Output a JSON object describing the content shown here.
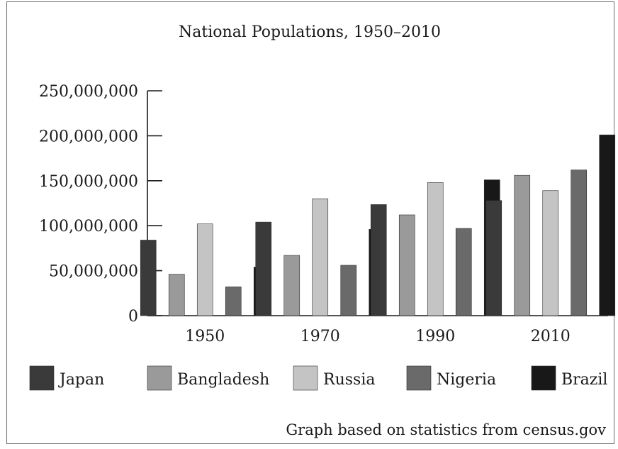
{
  "chart_data": {
    "type": "bar",
    "title": "National Populations, 1950–2010",
    "categories": [
      "1950",
      "1970",
      "1990",
      "2010"
    ],
    "series": [
      {
        "name": "Japan",
        "color": "#3a3a3a",
        "values": [
          84000000,
          104000000,
          123500000,
          128000000
        ]
      },
      {
        "name": "Bangladesh",
        "color": "#9a9a9a",
        "values": [
          46000000,
          67000000,
          112000000,
          156000000
        ]
      },
      {
        "name": "Russia",
        "color": "#c4c4c4",
        "values": [
          102000000,
          130000000,
          148000000,
          139000000
        ]
      },
      {
        "name": "Nigeria",
        "color": "#6a6a6a",
        "values": [
          32000000,
          56000000,
          97000000,
          162000000
        ]
      },
      {
        "name": "Brazil",
        "color": "#181818",
        "values": [
          54000000,
          96000000,
          151000000,
          201000000
        ]
      }
    ],
    "yticks": [
      "0",
      "50,000,000",
      "100,000,000",
      "150,000,000",
      "200,000,000",
      "250,000,000"
    ],
    "ytick_values": [
      0,
      50000000,
      100000000,
      150000000,
      200000000,
      250000000
    ],
    "ylim": [
      0,
      250000000
    ],
    "grid": false,
    "legend_position": "bottom",
    "source_note": "Graph based on statistics from census.gov"
  }
}
